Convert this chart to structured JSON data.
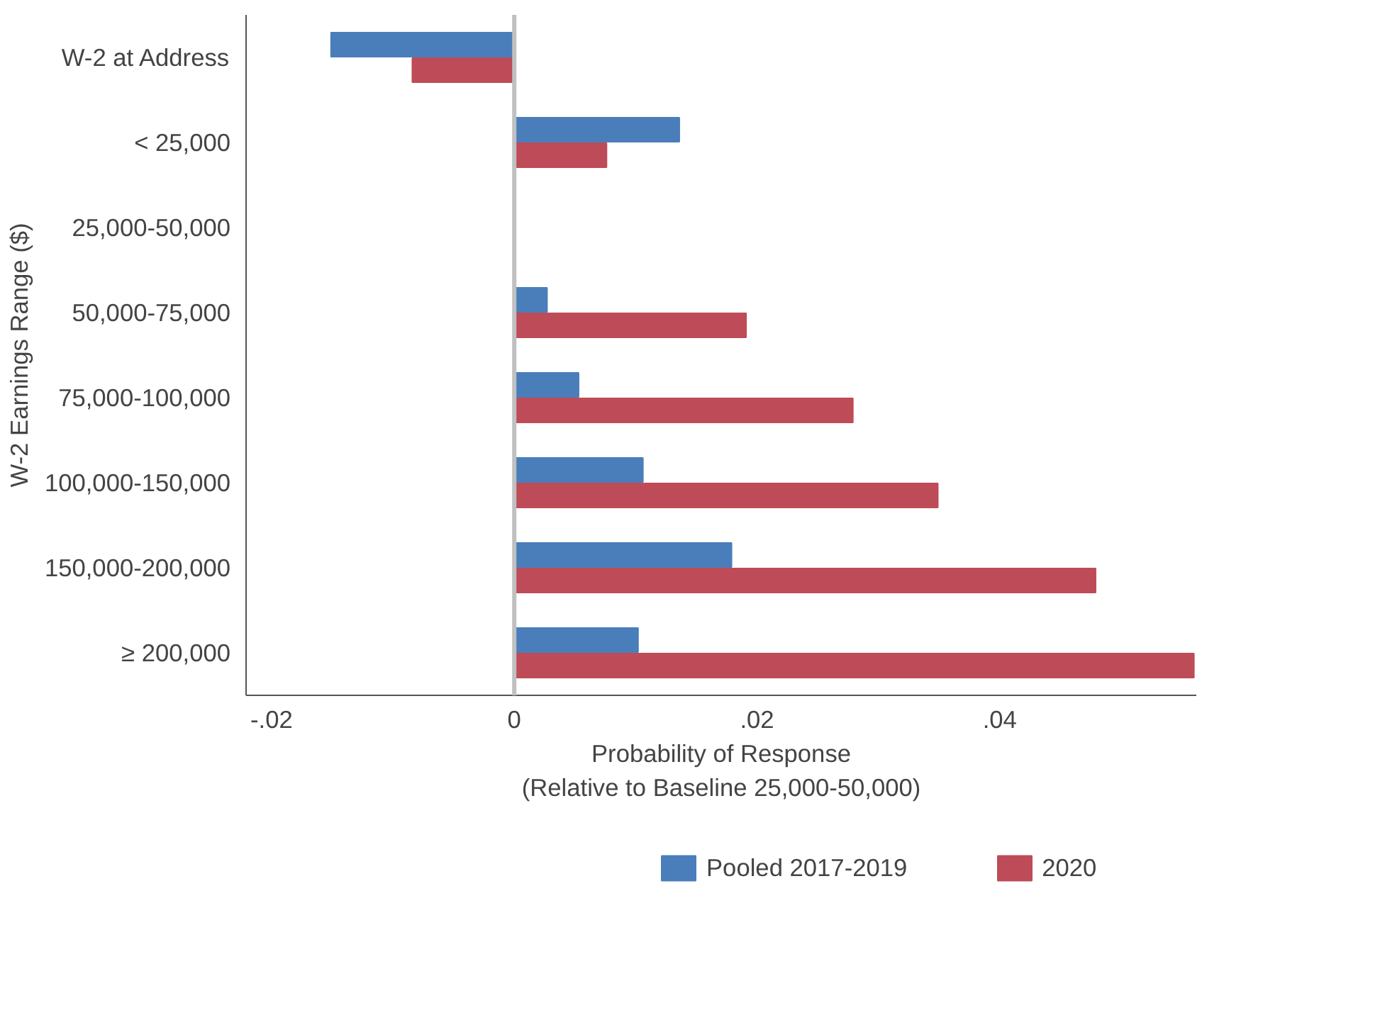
{
  "chart_data": {
    "type": "bar",
    "orientation": "horizontal",
    "ylabel": "W-2 Earnings Range ($)",
    "xlabel": "Probability of Response\n(Relative to Baseline 25,000-50,000)",
    "categories": [
      "W-2 at Address",
      "< 25,000",
      "25,000-50,000",
      "50,000-75,000",
      "75,000-100,000",
      "100,000-150,000",
      "150,000-200,000",
      "≥ 200,000"
    ],
    "series": [
      {
        "name": "Pooled 2017-2019",
        "color": "#4a7ebb",
        "values": [
          -0.0151,
          0.0136,
          null,
          0.0027,
          0.0053,
          0.0106,
          0.0179,
          0.0102
        ]
      },
      {
        "name": "2020",
        "color": "#be4b58",
        "values": [
          -0.0084,
          0.0076,
          null,
          0.0191,
          0.0279,
          0.0349,
          0.0479,
          0.056
        ]
      }
    ],
    "xlim": [
      -0.0221,
      0.0562
    ],
    "xticks": [
      {
        "value": -0.02,
        "label": "-.02"
      },
      {
        "value": 0,
        "label": "0"
      },
      {
        "value": 0.02,
        "label": ".02"
      },
      {
        "value": 0.04,
        "label": ".04"
      }
    ],
    "ref_lines": [
      {
        "axis": "x",
        "value": 0,
        "label": null,
        "color": "#c0c0c0"
      }
    ],
    "grid": false,
    "legend": "bottom"
  }
}
